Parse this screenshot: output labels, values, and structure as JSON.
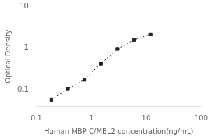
{
  "chart_data": {
    "type": "line",
    "xlabel": "Human MBP-C/MBL2 concentration(ng/mL)",
    "ylabel": "Optical Density",
    "x": [
      0.188,
      0.375,
      0.75,
      1.5,
      3.0,
      6.0,
      12.0
    ],
    "values": [
      0.058,
      0.105,
      0.175,
      0.42,
      0.95,
      1.55,
      2.1
    ],
    "color": "#222222",
    "marker": "square",
    "line_style": "dotted",
    "log": true,
    "grid": false,
    "xlim": [
      0.1,
      100
    ],
    "ylim": [
      0.04,
      10
    ],
    "xticks": [
      0.1,
      1,
      10,
      100
    ],
    "yticks": [
      0.1,
      1,
      10
    ]
  }
}
